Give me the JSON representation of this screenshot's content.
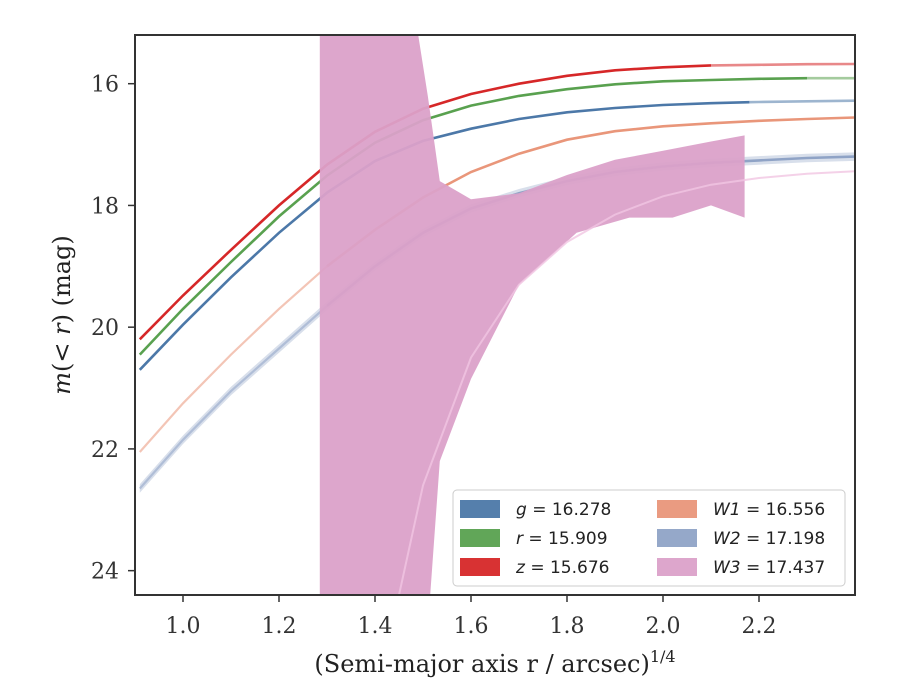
{
  "chart_data": {
    "type": "line",
    "xlabel": "(Semi-major axis r / arcsec)",
    "xlabel_superscript": "1/4",
    "ylabel": "m(< r) (mag)",
    "xlim": [
      0.9,
      2.4
    ],
    "ylim": [
      24.4,
      15.2
    ],
    "y_inverted": true,
    "x_ticks": [
      "1.0",
      "1.2",
      "1.4",
      "1.6",
      "1.8",
      "2.0",
      "2.2"
    ],
    "y_ticks": [
      "16",
      "18",
      "20",
      "22",
      "24"
    ],
    "grid": false,
    "legend_position": "bottom-right",
    "series": [
      {
        "name": "g = 16.278",
        "symbol": "g",
        "value": "16.278",
        "color": "#4c78a8",
        "points": [
          [
            0.91,
            20.7
          ],
          [
            1.0,
            19.96
          ],
          [
            1.1,
            19.18
          ],
          [
            1.2,
            18.45
          ],
          [
            1.3,
            17.79
          ],
          [
            1.4,
            17.27
          ],
          [
            1.5,
            16.94
          ],
          [
            1.6,
            16.74
          ],
          [
            1.7,
            16.58
          ],
          [
            1.8,
            16.47
          ],
          [
            1.9,
            16.4
          ],
          [
            2.0,
            16.35
          ],
          [
            2.1,
            16.32
          ],
          [
            2.2,
            16.3
          ],
          [
            2.3,
            16.29
          ],
          [
            2.4,
            16.28
          ]
        ],
        "solid_until": 2.18
      },
      {
        "name": "r = 15.909",
        "symbol": "r",
        "value": "15.909",
        "color": "#59a14f",
        "points": [
          [
            0.91,
            20.45
          ],
          [
            1.0,
            19.7
          ],
          [
            1.1,
            18.93
          ],
          [
            1.2,
            18.18
          ],
          [
            1.3,
            17.51
          ],
          [
            1.4,
            16.97
          ],
          [
            1.5,
            16.6
          ],
          [
            1.6,
            16.36
          ],
          [
            1.7,
            16.2
          ],
          [
            1.8,
            16.09
          ],
          [
            1.9,
            16.01
          ],
          [
            2.0,
            15.96
          ],
          [
            2.1,
            15.94
          ],
          [
            2.2,
            15.92
          ],
          [
            2.3,
            15.91
          ],
          [
            2.4,
            15.909
          ]
        ],
        "solid_until": 2.3
      },
      {
        "name": "z = 15.676",
        "symbol": "z",
        "value": "15.676",
        "color": "#d62728",
        "points": [
          [
            0.91,
            20.2
          ],
          [
            1.0,
            19.48
          ],
          [
            1.1,
            18.73
          ],
          [
            1.2,
            18.0
          ],
          [
            1.3,
            17.33
          ],
          [
            1.4,
            16.79
          ],
          [
            1.5,
            16.41
          ],
          [
            1.6,
            16.17
          ],
          [
            1.7,
            16.0
          ],
          [
            1.8,
            15.87
          ],
          [
            1.9,
            15.78
          ],
          [
            2.0,
            15.73
          ],
          [
            2.1,
            15.7
          ],
          [
            2.2,
            15.69
          ],
          [
            2.3,
            15.68
          ],
          [
            2.4,
            15.676
          ]
        ],
        "solid_until": 2.1
      },
      {
        "name": "W1 = 16.556",
        "symbol": "W1",
        "value": "16.556",
        "color": "#e9967a",
        "points": [
          [
            0.91,
            22.05
          ],
          [
            1.0,
            21.25
          ],
          [
            1.1,
            20.45
          ],
          [
            1.2,
            19.7
          ],
          [
            1.3,
            19.0
          ],
          [
            1.4,
            18.4
          ],
          [
            1.5,
            17.87
          ],
          [
            1.6,
            17.45
          ],
          [
            1.7,
            17.15
          ],
          [
            1.8,
            16.92
          ],
          [
            1.9,
            16.78
          ],
          [
            2.0,
            16.7
          ],
          [
            2.1,
            16.65
          ],
          [
            2.2,
            16.61
          ],
          [
            2.3,
            16.58
          ],
          [
            2.4,
            16.556
          ]
        ],
        "solid_from": 1.3
      },
      {
        "name": "W2 = 17.198",
        "symbol": "W2",
        "value": "17.198",
        "color": "#8fa3c6",
        "points": [
          [
            0.91,
            22.65
          ],
          [
            1.0,
            21.85
          ],
          [
            1.1,
            21.05
          ],
          [
            1.2,
            20.35
          ],
          [
            1.3,
            19.65
          ],
          [
            1.4,
            19.0
          ],
          [
            1.5,
            18.45
          ],
          [
            1.6,
            18.05
          ],
          [
            1.7,
            17.8
          ],
          [
            1.8,
            17.6
          ],
          [
            1.9,
            17.45
          ],
          [
            2.0,
            17.36
          ],
          [
            2.1,
            17.3
          ],
          [
            2.2,
            17.26
          ],
          [
            2.3,
            17.22
          ],
          [
            2.4,
            17.198
          ]
        ],
        "solid_from": 1.3,
        "band_halfwidth": 0.07
      },
      {
        "name": "W3 = 17.437",
        "symbol": "W3",
        "value": "17.437",
        "color": "#dba1c9",
        "band_upper": [
          [
            1.285,
            15.2
          ],
          [
            1.49,
            15.2
          ],
          [
            1.51,
            16.2
          ],
          [
            1.535,
            17.6
          ],
          [
            1.6,
            17.9
          ],
          [
            1.7,
            17.8
          ],
          [
            1.8,
            17.5
          ],
          [
            1.9,
            17.25
          ],
          [
            2.0,
            17.1
          ],
          [
            2.1,
            16.95
          ],
          [
            2.17,
            16.85
          ]
        ],
        "band_lower": [
          [
            2.17,
            18.2
          ],
          [
            2.1,
            18.0
          ],
          [
            2.02,
            18.2
          ],
          [
            1.93,
            18.2
          ],
          [
            1.82,
            18.45
          ],
          [
            1.7,
            19.3
          ],
          [
            1.6,
            20.85
          ],
          [
            1.535,
            22.2
          ],
          [
            1.515,
            24.4
          ],
          [
            1.285,
            24.4
          ]
        ],
        "curve": [
          [
            1.45,
            24.4
          ],
          [
            1.5,
            22.6
          ],
          [
            1.6,
            20.5
          ],
          [
            1.7,
            19.3
          ],
          [
            1.8,
            18.6
          ],
          [
            1.9,
            18.15
          ],
          [
            2.0,
            17.85
          ],
          [
            2.1,
            17.66
          ],
          [
            2.2,
            17.55
          ],
          [
            2.3,
            17.48
          ],
          [
            2.4,
            17.437
          ]
        ]
      }
    ]
  }
}
